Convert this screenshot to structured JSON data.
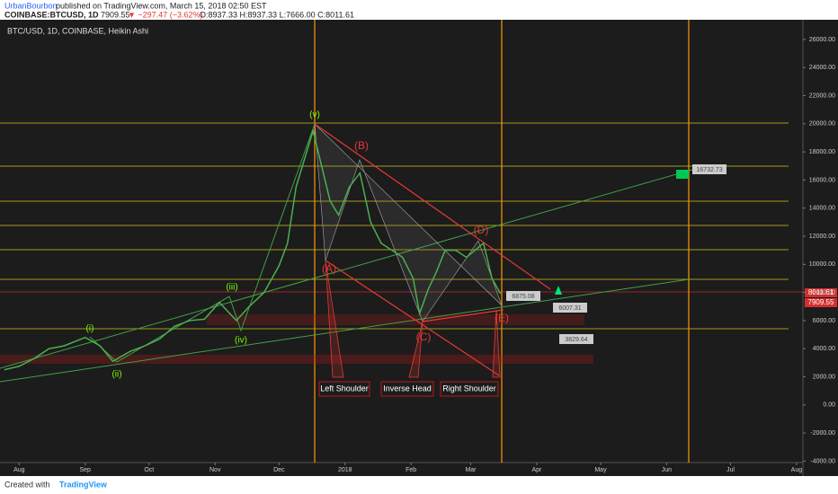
{
  "header": {
    "author": "UrbanBourbon",
    "published": "published on TradingView.com, March 15, 2018 02:50 EST",
    "symbol": "COINBASE:BTCUSD, 1D",
    "last": "7909.55",
    "change": "▼ −297.47 (−3.62%)",
    "ohlc": "O:8937.33 H:8937.33 L:7666.00 C:8011.61"
  },
  "footer": {
    "created": "Created with",
    "brand": "TradingView"
  },
  "chart_data": {
    "type": "line",
    "x": [
      -7,
      0,
      7,
      14,
      21,
      31,
      38,
      44,
      52,
      59,
      66,
      73,
      80,
      87,
      94,
      102,
      108,
      115,
      122,
      126,
      130,
      134,
      138,
      142,
      146,
      150,
      155,
      160,
      165,
      170,
      175,
      180,
      185,
      188,
      192,
      196,
      200,
      205,
      210,
      214,
      218,
      222,
      226
    ],
    "series": [
      {
        "name": "BTC/USD, 1D, COINBASE, Heikin Ashi",
        "color": "#4caf50",
        "values": [
          2500,
          2750,
          3300,
          4000,
          4200,
          4800,
          4200,
          3100,
          3800,
          4200,
          4700,
          5600,
          6000,
          6100,
          7300,
          6000,
          7000,
          8000,
          9900,
          11500,
          15500,
          17500,
          19500,
          17000,
          14500,
          13500,
          15500,
          16500,
          13000,
          11500,
          11000,
          10500,
          9000,
          6500,
          8200,
          9500,
          11000,
          11000,
          10500,
          11000,
          11500,
          9000,
          7909.55
        ]
      }
    ],
    "xlim": [
      -9,
      368
    ],
    "xticks": [
      {
        "value": 0,
        "label": "Aug"
      },
      {
        "value": 31,
        "label": "Sep"
      },
      {
        "value": 61,
        "label": "Oct"
      },
      {
        "value": 92,
        "label": "Nov"
      },
      {
        "value": 122,
        "label": "Dec"
      },
      {
        "value": 153,
        "label": "2018"
      },
      {
        "value": 184,
        "label": "Feb"
      },
      {
        "value": 212,
        "label": "Mar"
      },
      {
        "value": 243,
        "label": "Apr"
      },
      {
        "value": 273,
        "label": "May"
      },
      {
        "value": 304,
        "label": "Jun"
      },
      {
        "value": 334,
        "label": "Jul"
      },
      {
        "value": 365,
        "label": "Aug"
      }
    ],
    "ylim": [
      -4100,
      27400
    ],
    "yticks": [
      {
        "value": 26000,
        "label": "26000.00"
      },
      {
        "value": 24000,
        "label": "24000.00"
      },
      {
        "value": 22000,
        "label": "22000.00"
      },
      {
        "value": 20000,
        "label": "20000.00"
      },
      {
        "value": 18000,
        "label": "18000.00"
      },
      {
        "value": 16000,
        "label": "16000.00"
      },
      {
        "value": 14000,
        "label": "14000.00"
      },
      {
        "value": 12000,
        "label": "12000.00"
      },
      {
        "value": 10000,
        "label": "10000.00"
      },
      {
        "value": 8000,
        "label": "8000.00"
      },
      {
        "value": 6000,
        "label": "6000.00"
      },
      {
        "value": 4000,
        "label": "4000.00"
      },
      {
        "value": 2000,
        "label": "2000.00"
      },
      {
        "value": 0,
        "label": "0.00"
      },
      {
        "value": -2000,
        "label": "-2000.00"
      },
      {
        "value": -4000,
        "label": "-4000.00"
      }
    ],
    "annotations": {
      "waves": [
        "(i)",
        "(ii)",
        "(iii)",
        "(iv)",
        "(v)"
      ],
      "abcde": [
        "(A)",
        "(B)",
        "(C)",
        "(D)",
        "(E)"
      ],
      "pattern": [
        "Left Shoulder",
        "Inverse Head",
        "Right Shoulder"
      ],
      "price_boxes": [
        "16732.73",
        "6875.08",
        "6007.31",
        "3829.64"
      ],
      "axis_prices": [
        "8011.61",
        "7909.55"
      ]
    }
  }
}
